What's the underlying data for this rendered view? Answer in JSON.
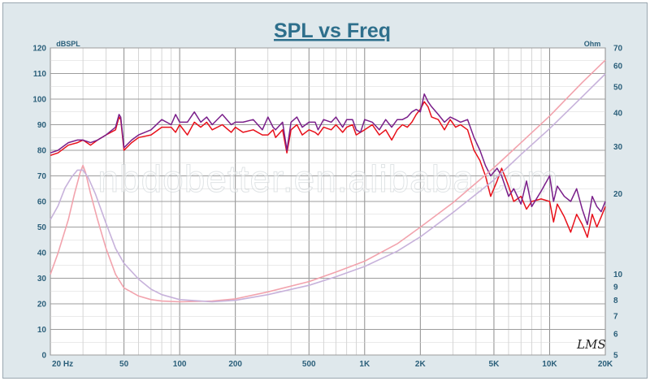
{
  "chart_data": {
    "type": "line",
    "title": "SPL vs Freq",
    "left_axis": {
      "unit": "dBSPL",
      "range": [
        0,
        120
      ],
      "ticks": [
        "0",
        "10",
        "20",
        "30",
        "40",
        "50",
        "60",
        "70",
        "80",
        "90",
        "100",
        "110",
        "120"
      ]
    },
    "right_axis": {
      "unit": "Ohm",
      "scale": "log",
      "range": [
        5,
        70
      ],
      "ticks": [
        {
          "value": 5,
          "label": "5"
        },
        {
          "value": 6,
          "label": "6"
        },
        {
          "value": 7,
          "label": "7"
        },
        {
          "value": 8,
          "label": "8"
        },
        {
          "value": 9,
          "label": "9"
        },
        {
          "value": 10,
          "label": "10"
        },
        {
          "value": 20,
          "label": "20"
        },
        {
          "value": 30,
          "label": "30"
        },
        {
          "value": 40,
          "label": "40"
        },
        {
          "value": 50,
          "label": "50"
        },
        {
          "value": 60,
          "label": "60"
        },
        {
          "value": 70,
          "label": "70"
        }
      ]
    },
    "x_axis": {
      "scale": "log",
      "range": [
        20,
        20000
      ],
      "ticks": [
        {
          "value": 20,
          "label": "20 Hz"
        },
        {
          "value": 50,
          "label": "50"
        },
        {
          "value": 100,
          "label": "100"
        },
        {
          "value": 200,
          "label": "200"
        },
        {
          "value": 500,
          "label": "500"
        },
        {
          "value": 1000,
          "label": "1K"
        },
        {
          "value": 2000,
          "label": "2K"
        },
        {
          "value": 5000,
          "label": "5K"
        },
        {
          "value": 10000,
          "label": "10K"
        },
        {
          "value": 20000,
          "label": "20K"
        }
      ]
    },
    "grid": true,
    "watermark": "nbdobetter.en.alibaba.com",
    "signature": "LMS",
    "series": [
      {
        "axis": "spl",
        "color": "#e8101a",
        "points": [
          [
            20,
            78
          ],
          [
            22,
            79
          ],
          [
            25,
            82
          ],
          [
            28,
            83
          ],
          [
            30,
            84
          ],
          [
            33,
            82
          ],
          [
            36,
            84
          ],
          [
            40,
            86
          ],
          [
            45,
            88
          ],
          [
            47,
            93
          ],
          [
            48,
            92
          ],
          [
            50,
            80
          ],
          [
            55,
            83
          ],
          [
            60,
            85
          ],
          [
            70,
            86
          ],
          [
            80,
            89
          ],
          [
            90,
            89
          ],
          [
            95,
            87
          ],
          [
            100,
            90
          ],
          [
            110,
            86
          ],
          [
            120,
            91
          ],
          [
            130,
            89
          ],
          [
            140,
            91
          ],
          [
            150,
            88
          ],
          [
            170,
            90
          ],
          [
            190,
            87
          ],
          [
            200,
            89
          ],
          [
            220,
            87
          ],
          [
            250,
            88
          ],
          [
            280,
            86
          ],
          [
            300,
            86
          ],
          [
            320,
            88
          ],
          [
            330,
            85
          ],
          [
            360,
            88
          ],
          [
            380,
            79
          ],
          [
            400,
            88
          ],
          [
            430,
            90
          ],
          [
            460,
            86
          ],
          [
            500,
            88
          ],
          [
            540,
            87
          ],
          [
            560,
            86
          ],
          [
            600,
            89
          ],
          [
            660,
            88
          ],
          [
            700,
            90
          ],
          [
            760,
            87
          ],
          [
            800,
            89
          ],
          [
            860,
            90
          ],
          [
            900,
            86
          ],
          [
            950,
            87
          ],
          [
            1000,
            88
          ],
          [
            1100,
            90
          ],
          [
            1200,
            86
          ],
          [
            1300,
            88
          ],
          [
            1400,
            84
          ],
          [
            1500,
            88
          ],
          [
            1600,
            90
          ],
          [
            1700,
            89
          ],
          [
            1800,
            91
          ],
          [
            1900,
            94
          ],
          [
            2000,
            96
          ],
          [
            2100,
            99
          ],
          [
            2200,
            97
          ],
          [
            2300,
            93
          ],
          [
            2500,
            92
          ],
          [
            2700,
            88
          ],
          [
            2900,
            92
          ],
          [
            3100,
            89
          ],
          [
            3300,
            90
          ],
          [
            3600,
            88
          ],
          [
            3900,
            80
          ],
          [
            4200,
            76
          ],
          [
            4500,
            70
          ],
          [
            4800,
            62
          ],
          [
            5200,
            68
          ],
          [
            5500,
            73
          ],
          [
            6000,
            66
          ],
          [
            6400,
            60
          ],
          [
            7000,
            62
          ],
          [
            7500,
            57
          ],
          [
            8000,
            60
          ],
          [
            9000,
            61
          ],
          [
            10000,
            60
          ],
          [
            10500,
            52
          ],
          [
            11000,
            59
          ],
          [
            12000,
            54
          ],
          [
            13000,
            48
          ],
          [
            14000,
            55
          ],
          [
            15000,
            51
          ],
          [
            16000,
            46
          ],
          [
            17000,
            55
          ],
          [
            18000,
            50
          ],
          [
            19000,
            54
          ],
          [
            20000,
            58
          ]
        ]
      },
      {
        "axis": "spl",
        "color": "#7a1f8a",
        "points": [
          [
            20,
            79
          ],
          [
            22,
            80
          ],
          [
            25,
            83
          ],
          [
            28,
            84
          ],
          [
            30,
            84
          ],
          [
            33,
            83
          ],
          [
            36,
            84
          ],
          [
            40,
            86
          ],
          [
            45,
            89
          ],
          [
            47,
            94
          ],
          [
            48,
            93
          ],
          [
            50,
            81
          ],
          [
            55,
            84
          ],
          [
            60,
            86
          ],
          [
            70,
            88
          ],
          [
            80,
            92
          ],
          [
            90,
            90
          ],
          [
            95,
            94
          ],
          [
            100,
            91
          ],
          [
            110,
            91
          ],
          [
            120,
            95
          ],
          [
            130,
            91
          ],
          [
            140,
            93
          ],
          [
            150,
            90
          ],
          [
            170,
            94
          ],
          [
            190,
            90
          ],
          [
            200,
            91
          ],
          [
            220,
            91
          ],
          [
            250,
            92
          ],
          [
            280,
            88
          ],
          [
            300,
            93
          ],
          [
            320,
            89
          ],
          [
            330,
            88
          ],
          [
            360,
            91
          ],
          [
            380,
            80
          ],
          [
            400,
            91
          ],
          [
            430,
            93
          ],
          [
            460,
            89
          ],
          [
            500,
            91
          ],
          [
            540,
            91
          ],
          [
            560,
            88
          ],
          [
            600,
            92
          ],
          [
            660,
            91
          ],
          [
            700,
            93
          ],
          [
            760,
            89
          ],
          [
            800,
            92
          ],
          [
            860,
            92
          ],
          [
            900,
            88
          ],
          [
            950,
            87
          ],
          [
            1000,
            92
          ],
          [
            1100,
            91
          ],
          [
            1200,
            88
          ],
          [
            1300,
            92
          ],
          [
            1400,
            89
          ],
          [
            1500,
            92
          ],
          [
            1600,
            92
          ],
          [
            1700,
            93
          ],
          [
            1800,
            95
          ],
          [
            1900,
            96
          ],
          [
            2000,
            95
          ],
          [
            2100,
            102
          ],
          [
            2200,
            99
          ],
          [
            2300,
            97
          ],
          [
            2500,
            94
          ],
          [
            2700,
            91
          ],
          [
            2900,
            93
          ],
          [
            3100,
            92
          ],
          [
            3300,
            91
          ],
          [
            3600,
            92
          ],
          [
            3900,
            85
          ],
          [
            4200,
            80
          ],
          [
            4500,
            74
          ],
          [
            4800,
            70
          ],
          [
            5200,
            73
          ],
          [
            5500,
            70
          ],
          [
            6000,
            62
          ],
          [
            6400,
            65
          ],
          [
            7000,
            59
          ],
          [
            7500,
            68
          ],
          [
            8000,
            58
          ],
          [
            9000,
            64
          ],
          [
            10000,
            70
          ],
          [
            10500,
            60
          ],
          [
            11000,
            66
          ],
          [
            12000,
            62
          ],
          [
            13000,
            60
          ],
          [
            14000,
            65
          ],
          [
            15000,
            57
          ],
          [
            16000,
            51
          ],
          [
            17000,
            62
          ],
          [
            18000,
            58
          ],
          [
            19000,
            56
          ],
          [
            20000,
            60
          ]
        ]
      },
      {
        "axis": "ohm",
        "color": "#f2a3ad",
        "points": [
          [
            20,
            10.0
          ],
          [
            22,
            12
          ],
          [
            25,
            16
          ],
          [
            27,
            20
          ],
          [
            29,
            24
          ],
          [
            30,
            25.5
          ],
          [
            31,
            24
          ],
          [
            33,
            20
          ],
          [
            36,
            16
          ],
          [
            40,
            12.5
          ],
          [
            45,
            10.0
          ],
          [
            50,
            8.9
          ],
          [
            60,
            8.3
          ],
          [
            70,
            8.05
          ],
          [
            80,
            7.95
          ],
          [
            100,
            7.9
          ],
          [
            150,
            7.95
          ],
          [
            200,
            8.1
          ],
          [
            300,
            8.6
          ],
          [
            500,
            9.4
          ],
          [
            700,
            10.2
          ],
          [
            1000,
            11.2
          ],
          [
            1500,
            13.0
          ],
          [
            2000,
            15.0
          ],
          [
            3000,
            18.5
          ],
          [
            5000,
            25.0
          ],
          [
            7000,
            31.0
          ],
          [
            10000,
            39.0
          ],
          [
            15000,
            52.0
          ],
          [
            20000,
            63.0
          ]
        ]
      },
      {
        "axis": "ohm",
        "color": "#c7b2db",
        "points": [
          [
            20,
            16
          ],
          [
            22,
            18
          ],
          [
            24,
            21
          ],
          [
            26,
            23
          ],
          [
            28,
            24.5
          ],
          [
            30,
            24.5
          ],
          [
            32,
            23
          ],
          [
            35,
            20
          ],
          [
            40,
            15.5
          ],
          [
            45,
            12.5
          ],
          [
            50,
            11.0
          ],
          [
            60,
            9.6
          ],
          [
            70,
            8.8
          ],
          [
            80,
            8.4
          ],
          [
            100,
            8.05
          ],
          [
            150,
            7.9
          ],
          [
            200,
            8.0
          ],
          [
            300,
            8.4
          ],
          [
            500,
            9.1
          ],
          [
            700,
            9.8
          ],
          [
            1000,
            10.7
          ],
          [
            1500,
            12.2
          ],
          [
            2000,
            13.8
          ],
          [
            3000,
            17.0
          ],
          [
            5000,
            22.5
          ],
          [
            7000,
            28.0
          ],
          [
            10000,
            35.0
          ],
          [
            15000,
            46.0
          ],
          [
            20000,
            56.0
          ]
        ]
      }
    ]
  }
}
